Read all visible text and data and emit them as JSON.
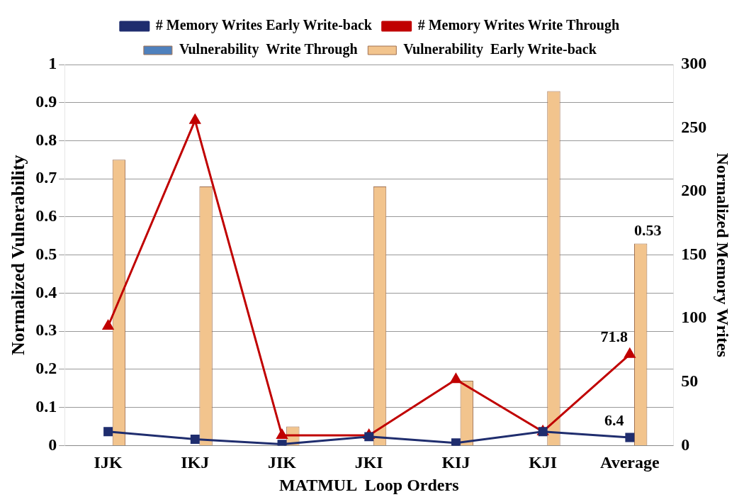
{
  "chart_data": {
    "type": "bar",
    "xlabel": "MATMUL  Loop Orders",
    "ylabel": "Normalized Vulnerability",
    "y2label": "Normalized Memory Writes",
    "categories": [
      "IJK",
      "IKJ",
      "JIK",
      "JKI",
      "KIJ",
      "KJI",
      "Average"
    ],
    "series": [
      {
        "name": "Vulnerability  Write Through",
        "color": "#4f81bd",
        "values": [
          0,
          0,
          0,
          0,
          0,
          0,
          0
        ]
      },
      {
        "name": "Vulnerability  Early Write-back",
        "color": "#f2c48d",
        "values": [
          0.75,
          0.68,
          0.05,
          0.68,
          0.17,
          0.93,
          0.53
        ],
        "value_labels": [
          null,
          null,
          null,
          null,
          null,
          null,
          "0.53"
        ]
      },
      {
        "name": "# Memory Writes Write Through",
        "type": "line",
        "axis": "y2",
        "marker": "triangle",
        "color": "#c00000",
        "values": [
          94,
          256,
          8,
          8,
          52,
          11,
          71.8
        ],
        "value_labels": [
          null,
          null,
          null,
          null,
          null,
          null,
          "71.8"
        ]
      },
      {
        "name": "# Memory Writes Early Write-back",
        "type": "line",
        "axis": "y2",
        "marker": "square",
        "color": "#1f2d6e",
        "values": [
          11,
          5,
          1,
          7,
          2,
          11,
          6.4
        ],
        "value_labels": [
          null,
          null,
          null,
          null,
          null,
          null,
          "6.4"
        ]
      }
    ],
    "ylim": [
      0,
      1
    ],
    "yticks": [
      0,
      0.1,
      0.2,
      0.3,
      0.4,
      0.5,
      0.6,
      0.7,
      0.8,
      0.9,
      1
    ],
    "y2lim": [
      0,
      300
    ],
    "y2ticks": [
      0,
      50,
      100,
      150,
      200,
      250,
      300
    ],
    "grid": "y",
    "legend": "top"
  }
}
